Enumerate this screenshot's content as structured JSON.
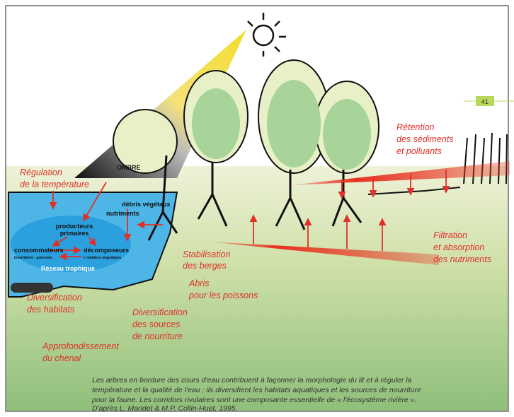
{
  "page_number": "41",
  "labels": {
    "retention": [
      "Rétention",
      "des sédiments",
      "et polluants"
    ],
    "regulation": [
      "Régulation",
      "de la température"
    ],
    "ombre": "OMBRE",
    "debris": "débris végétaux",
    "nutriments": "nutriments",
    "producteurs": [
      "producteurs",
      "primaires"
    ],
    "consommateurs": [
      "consommateurs",
      "invertébrés - poissons"
    ],
    "decomposeurs": [
      "décomposeurs",
      "« matières organiques"
    ],
    "reseau": "Réseau trophique",
    "stabilisation": [
      "Stabilisation",
      "des berges"
    ],
    "abris": [
      "Abris",
      "pour les poissons"
    ],
    "filtration": [
      "Filtration",
      "et absorption",
      "des nutriments"
    ],
    "habitats": [
      "Diversification",
      "des habitats"
    ],
    "sources": [
      "Diversification",
      "des sources",
      "de nourriture"
    ],
    "approfondissement": [
      "Approfondissement",
      "du chenal"
    ]
  },
  "caption": [
    "Les arbres en bordure des cours d'eau contribuent à façonner la morphologie du lit et à réguler la",
    "température et la qualité de l'eau ; ils diversifient les habitats aquatiques et les sources de nourriture",
    "pour la faune. Les corridors rivulaires sont une composante essentielle de « l'écosystème rivière ».",
    "D'après L. Maridet & M.P. Collin-Huet, 1995."
  ]
}
